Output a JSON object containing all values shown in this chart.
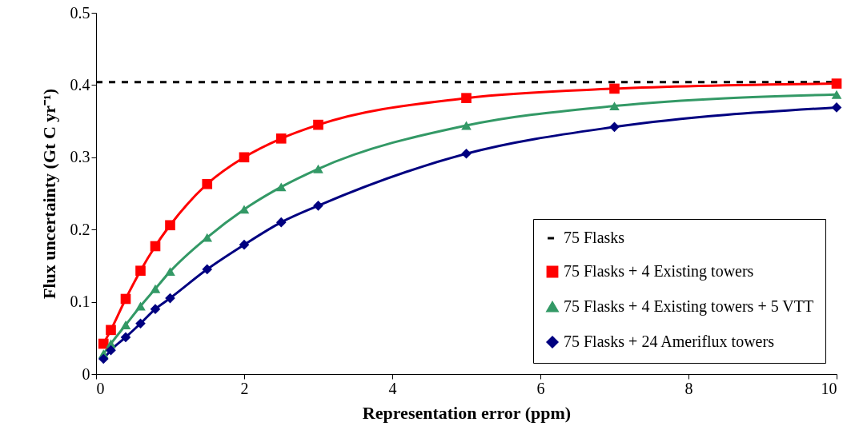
{
  "chart_data": {
    "type": "line",
    "xlabel": "Representation error (ppm)",
    "ylabel": "Flux uncertainty (Gt C yr⁻¹)",
    "xlim": [
      0,
      10
    ],
    "xticks": [
      0,
      2,
      4,
      6,
      8,
      10
    ],
    "ylim": [
      0,
      0.5
    ],
    "yticks": [
      0,
      0.1,
      0.2,
      0.3,
      0.4,
      0.5
    ],
    "grid": false,
    "legend": "bottom right",
    "series": [
      {
        "name": "75 Flasks",
        "color": "#000000",
        "marker": "none",
        "line_style": "dashed",
        "x": [
          0,
          10
        ],
        "values": [
          0.404,
          0.404
        ]
      },
      {
        "name": "75 Flasks + 4 Existing towers",
        "color": "#ff0000",
        "marker": "square",
        "line_style": "solid",
        "x": [
          0.1,
          0.2,
          0.4,
          0.6,
          0.8,
          1,
          1.5,
          2,
          2.5,
          3,
          5,
          7,
          10
        ],
        "values": [
          0.042,
          0.061,
          0.104,
          0.143,
          0.177,
          0.206,
          0.263,
          0.3,
          0.326,
          0.345,
          0.382,
          0.395,
          0.402
        ]
      },
      {
        "name": "75 Flasks + 4 Existing towers + 5 VTT",
        "color": "#339966",
        "marker": "triangle",
        "line_style": "solid",
        "x": [
          0.1,
          0.2,
          0.4,
          0.6,
          0.8,
          1,
          1.5,
          2,
          2.5,
          3,
          5,
          7,
          10
        ],
        "values": [
          0.028,
          0.042,
          0.068,
          0.094,
          0.118,
          0.142,
          0.189,
          0.228,
          0.259,
          0.284,
          0.344,
          0.371,
          0.387
        ]
      },
      {
        "name": "75 Flasks + 24 Ameriflux towers",
        "color": "#000080",
        "marker": "diamond",
        "line_style": "solid",
        "x": [
          0.1,
          0.2,
          0.4,
          0.6,
          0.8,
          1,
          1.5,
          2,
          2.5,
          3,
          5,
          7,
          10
        ],
        "values": [
          0.021,
          0.033,
          0.051,
          0.07,
          0.09,
          0.105,
          0.145,
          0.179,
          0.21,
          0.233,
          0.305,
          0.342,
          0.369
        ]
      }
    ]
  }
}
